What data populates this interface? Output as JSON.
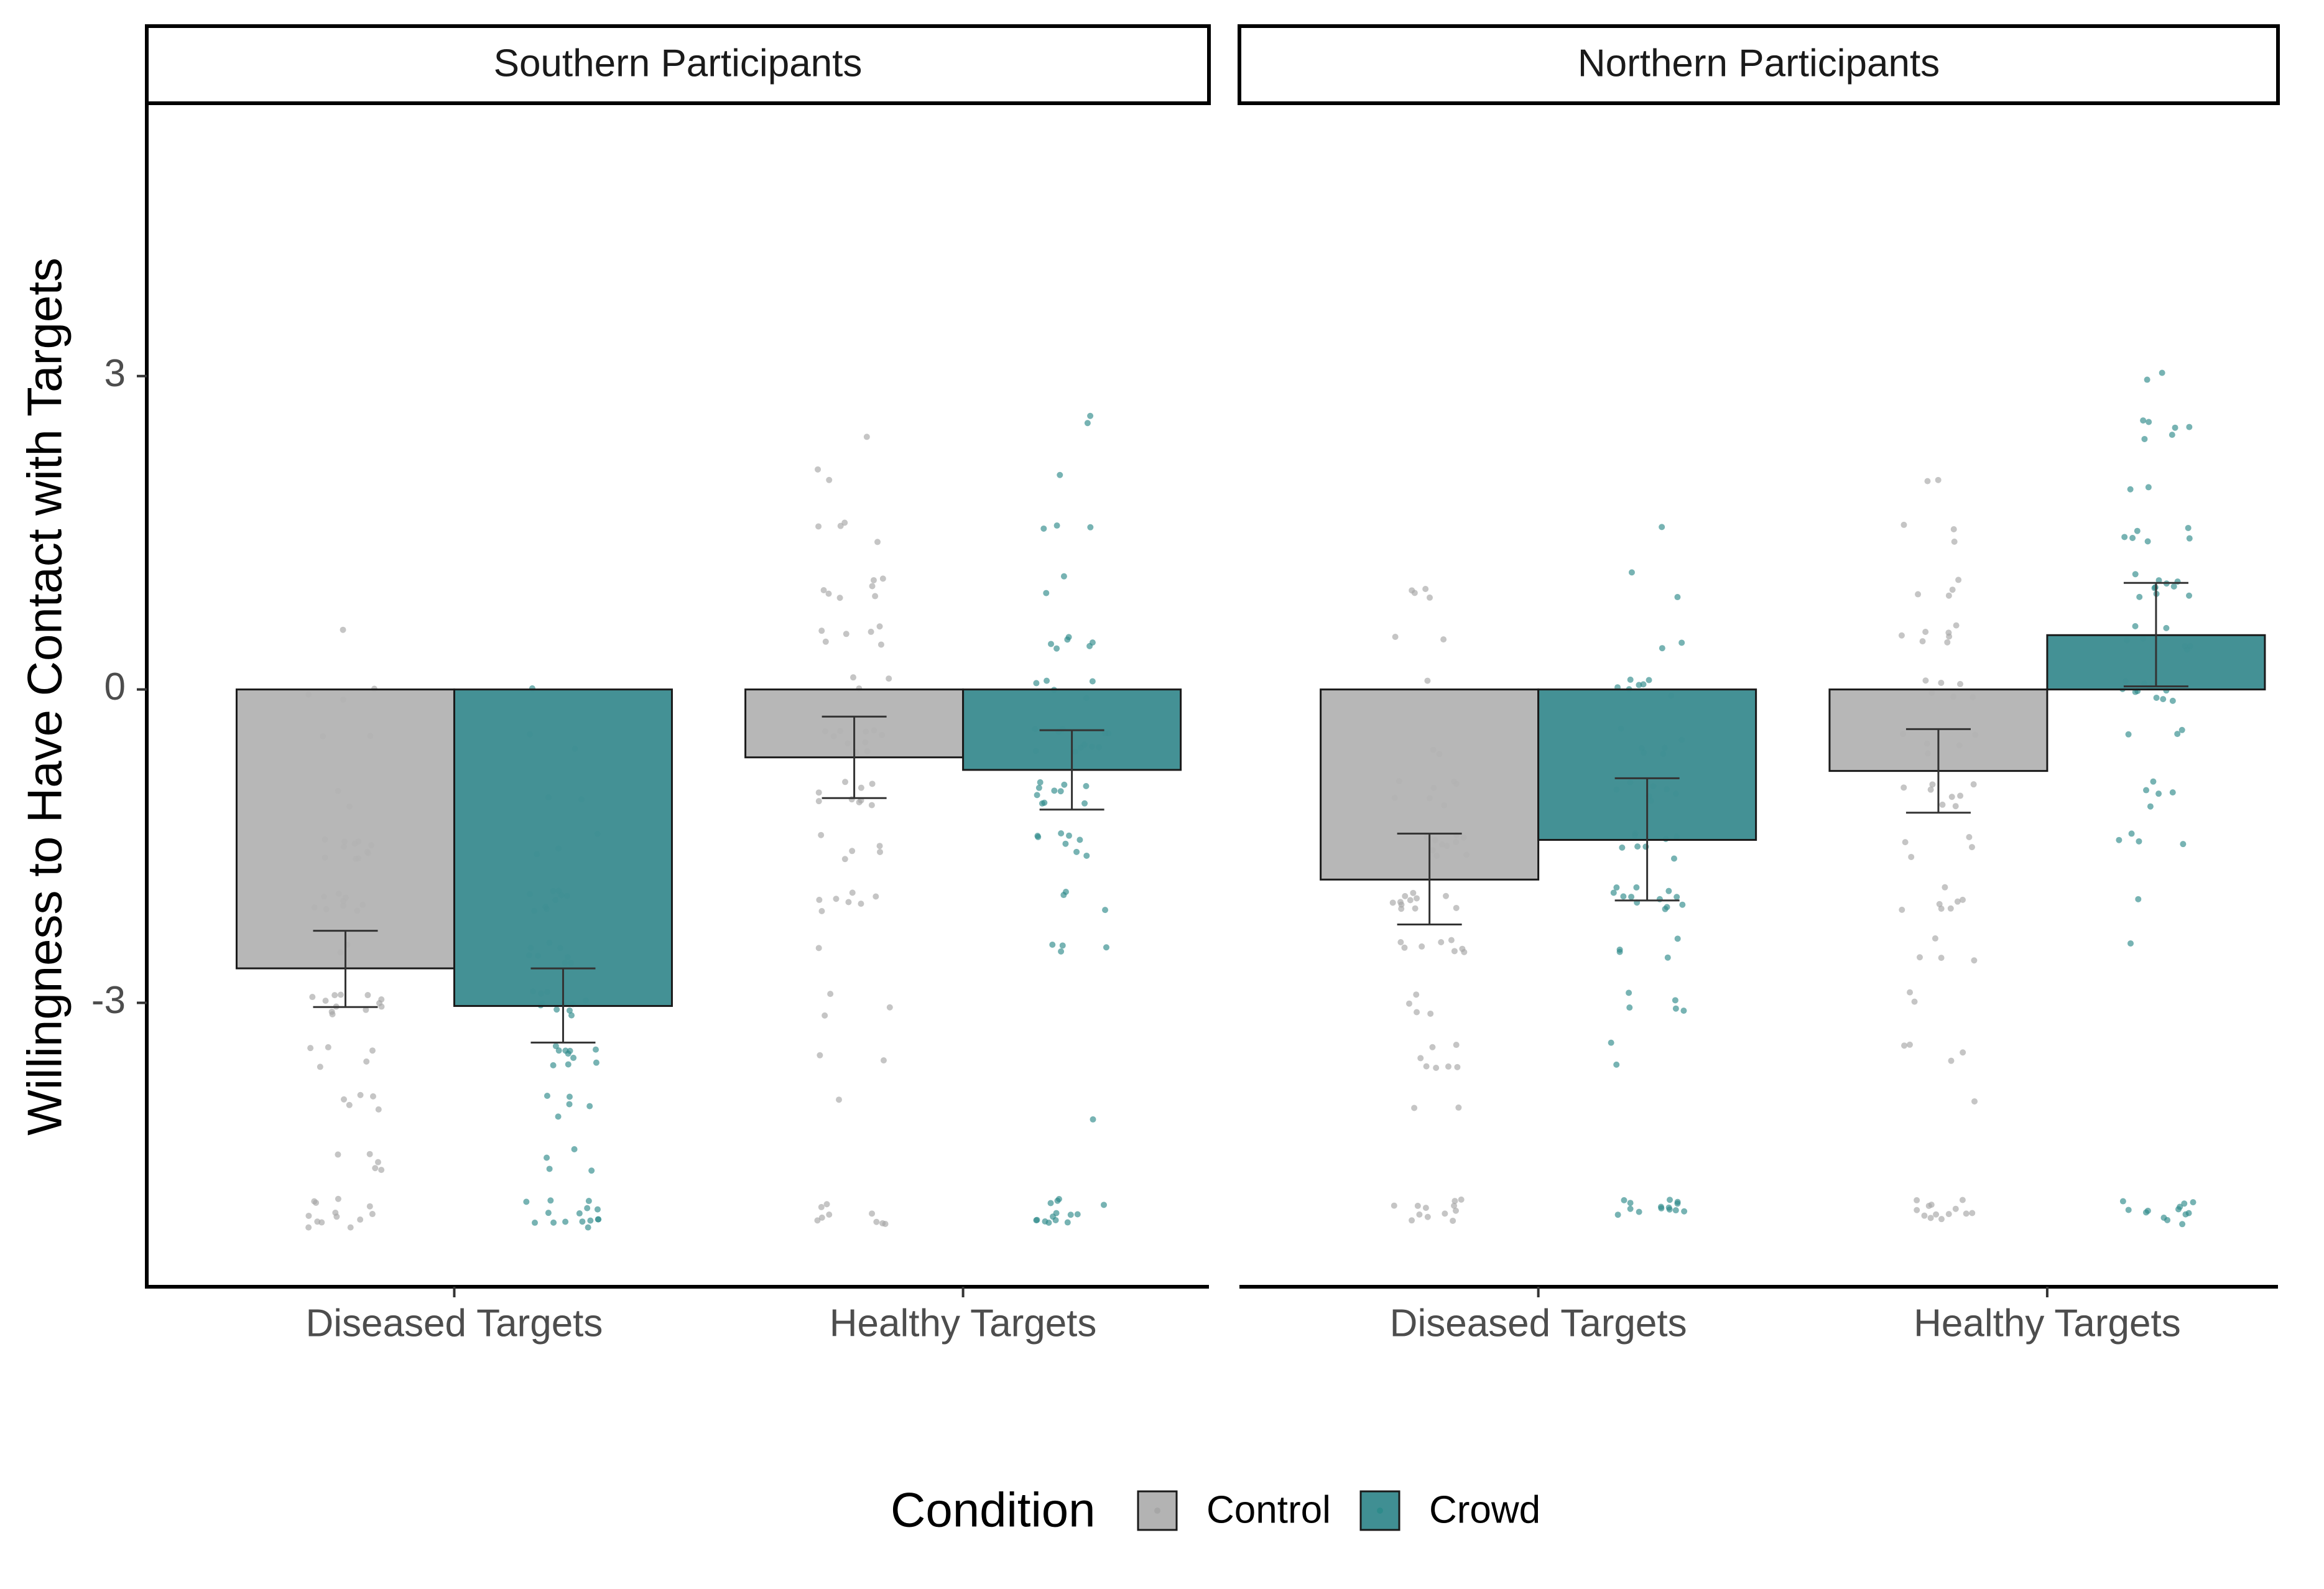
{
  "chart_data": {
    "type": "bar",
    "ylabel": "Willingness to Have Contact with Targets",
    "xlabel": "",
    "ylim": [
      -5.7,
      5.6
    ],
    "y_ticks": [
      -3,
      0,
      3
    ],
    "y_tick_labels": [
      "-3",
      "0",
      "3"
    ],
    "categories": [
      "Diseased Targets",
      "Healthy Targets"
    ],
    "legend": {
      "title": "Condition",
      "position": "bottom",
      "entries": [
        {
          "name": "Control",
          "color": "#b3b3b3",
          "point_color": "#a6a6a6"
        },
        {
          "name": "Crowd",
          "color": "#408f93",
          "point_color": "#2e8b8b"
        }
      ]
    },
    "grid": false,
    "panels": [
      {
        "label": "Southern Participants",
        "series": [
          {
            "name": "Control",
            "values": [
              -2.67,
              -0.65
            ],
            "ci_low": [
              -3.04,
              -1.04
            ],
            "ci_high": [
              -2.31,
              -0.26
            ]
          },
          {
            "name": "Crowd",
            "values": [
              -3.03,
              -0.77
            ],
            "ci_low": [
              -3.38,
              -1.15
            ],
            "ci_high": [
              -2.67,
              -0.39
            ]
          }
        ]
      },
      {
        "label": "Northern Participants",
        "series": [
          {
            "name": "Control",
            "values": [
              -1.82,
              -0.78
            ],
            "ci_low": [
              -2.25,
              -1.18
            ],
            "ci_high": [
              -1.38,
              -0.38
            ]
          },
          {
            "name": "Crowd",
            "values": [
              -1.44,
              0.52
            ],
            "ci_low": [
              -2.02,
              0.03
            ],
            "ci_high": [
              -0.85,
              1.02
            ]
          }
        ]
      }
    ]
  }
}
